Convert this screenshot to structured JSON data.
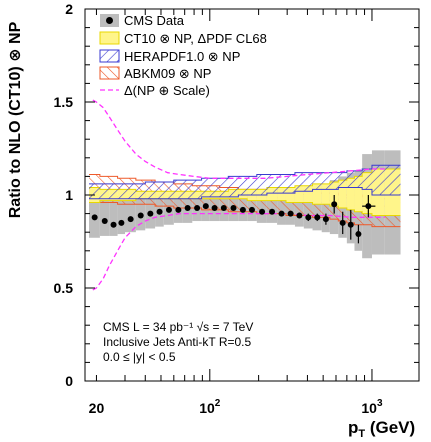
{
  "chart_data": {
    "type": "line",
    "xlabel": "p",
    "xlabel_sub": "T",
    "xlabel_unit": " (GeV)",
    "ylabel": "Ratio to NLO (CT10) ⊗ NP",
    "xlim": [
      17,
      1950
    ],
    "ylim": [
      0,
      2
    ],
    "x_scale": "log",
    "x_tick_labels": [
      {
        "x": 20,
        "text": "20",
        "sup": ""
      },
      {
        "x": 100,
        "text": "10",
        "sup": "2"
      },
      {
        "x": 1000,
        "text": "10",
        "sup": "3"
      }
    ],
    "y_ticks": [
      0,
      0.5,
      1,
      1.5,
      2
    ],
    "y_tick_labels": [
      "0",
      "0.5",
      "1",
      "1.5",
      "2"
    ],
    "legend_position": "top-right",
    "legend": [
      {
        "key": "data",
        "label": "CMS Data"
      },
      {
        "key": "ct10",
        "label": "CT10 ⊗ NP, ΔPDF CL68"
      },
      {
        "key": "hera",
        "label": "HERAPDF1.0 ⊗ NP"
      },
      {
        "key": "abkm",
        "label": "ABKM09 ⊗ NP"
      },
      {
        "key": "np",
        "label": "Δ(NP ⊕ Scale)"
      }
    ],
    "annotations": [
      "CMS   L = 34 pb⁻¹   √s = 7 TeV",
      "Inclusive Jets   Anti-kT R=0.5",
      "0.0 ≤ |y| < 0.5"
    ],
    "bins": [
      18,
      21,
      24,
      27,
      30,
      35,
      40,
      46,
      52,
      60,
      68,
      78,
      89,
      100,
      115,
      130,
      150,
      170,
      195,
      225,
      260,
      295,
      335,
      380,
      430,
      490,
      550,
      620,
      700,
      780,
      870,
      1000,
      1200,
      1500
    ],
    "series": [
      {
        "name": "CMS Data",
        "x": [
          19.5,
          22.5,
          25.5,
          28.5,
          32.5,
          37.5,
          43,
          49,
          56,
          64,
          73,
          83.5,
          94.5,
          107,
          122,
          140,
          160,
          182,
          210,
          242,
          277,
          315,
          357,
          405,
          460,
          520,
          585,
          660,
          740,
          825,
          950
        ],
        "y": [
          0.88,
          0.86,
          0.84,
          0.85,
          0.87,
          0.89,
          0.9,
          0.91,
          0.92,
          0.92,
          0.93,
          0.93,
          0.94,
          0.93,
          0.93,
          0.93,
          0.92,
          0.92,
          0.91,
          0.91,
          0.9,
          0.9,
          0.89,
          0.88,
          0.88,
          0.87,
          0.95,
          0.85,
          0.84,
          0.79,
          0.94
        ],
        "err": [
          0.01,
          0.01,
          0.01,
          0.01,
          0.01,
          0.01,
          0.01,
          0.01,
          0.01,
          0.01,
          0.01,
          0.01,
          0.01,
          0.01,
          0.01,
          0.01,
          0.01,
          0.01,
          0.01,
          0.01,
          0.01,
          0.01,
          0.015,
          0.02,
          0.02,
          0.03,
          0.05,
          0.06,
          0.08,
          0.05,
          0.06
        ]
      },
      {
        "name": "Systematic uncertainty",
        "lo": [
          0.77,
          0.78,
          0.78,
          0.79,
          0.8,
          0.81,
          0.82,
          0.83,
          0.84,
          0.85,
          0.85,
          0.86,
          0.86,
          0.86,
          0.86,
          0.86,
          0.86,
          0.86,
          0.85,
          0.85,
          0.84,
          0.84,
          0.83,
          0.82,
          0.81,
          0.8,
          0.79,
          0.77,
          0.74,
          0.7,
          0.66,
          0.68,
          0.68
        ],
        "hi": [
          1.0,
          0.99,
          0.98,
          0.99,
          1.0,
          1.01,
          1.01,
          1.02,
          1.02,
          1.02,
          1.02,
          1.02,
          1.02,
          1.02,
          1.02,
          1.02,
          1.02,
          1.02,
          1.02,
          1.02,
          1.02,
          1.02,
          1.03,
          1.04,
          1.05,
          1.06,
          1.08,
          1.1,
          1.12,
          1.13,
          1.22,
          1.24,
          1.24
        ]
      },
      {
        "name": "CT10 ⊗ NP, ΔPDF CL68",
        "lo": [
          0.96,
          0.97,
          0.97,
          0.97,
          0.97,
          0.98,
          0.98,
          0.98,
          0.98,
          0.98,
          0.98,
          0.98,
          0.98,
          0.98,
          0.98,
          0.98,
          0.98,
          0.97,
          0.97,
          0.97,
          0.97,
          0.96,
          0.96,
          0.96,
          0.95,
          0.95,
          0.94,
          0.93,
          0.92,
          0.91,
          0.9,
          0.89,
          0.89
        ],
        "hi": [
          1.04,
          1.03,
          1.03,
          1.03,
          1.03,
          1.02,
          1.02,
          1.02,
          1.02,
          1.02,
          1.02,
          1.02,
          1.02,
          1.02,
          1.02,
          1.03,
          1.03,
          1.03,
          1.03,
          1.04,
          1.04,
          1.04,
          1.05,
          1.05,
          1.06,
          1.06,
          1.07,
          1.08,
          1.09,
          1.1,
          1.12,
          1.14,
          1.14
        ]
      },
      {
        "name": "HERAPDF1.0 ⊗ NP",
        "lo": [
          0.98,
          0.98,
          0.98,
          0.98,
          0.98,
          0.98,
          0.98,
          0.98,
          0.98,
          0.98,
          0.98,
          0.98,
          0.99,
          0.99,
          0.99,
          0.99,
          1.0,
          1.0,
          1.0,
          1.01,
          1.01,
          1.01,
          1.02,
          1.02,
          1.03,
          1.03,
          1.03,
          1.04,
          1.04,
          1.04,
          1.03,
          1.0,
          1.0
        ],
        "hi": [
          1.06,
          1.06,
          1.06,
          1.06,
          1.06,
          1.06,
          1.07,
          1.07,
          1.07,
          1.08,
          1.08,
          1.08,
          1.09,
          1.09,
          1.09,
          1.1,
          1.1,
          1.1,
          1.11,
          1.11,
          1.11,
          1.11,
          1.12,
          1.12,
          1.12,
          1.12,
          1.12,
          1.12,
          1.13,
          1.13,
          1.14,
          1.16,
          1.16
        ]
      },
      {
        "name": "ABKM09 ⊗ NP",
        "lo": [
          0.96,
          0.96,
          0.96,
          0.95,
          0.95,
          0.95,
          0.95,
          0.94,
          0.94,
          0.93,
          0.93,
          0.93,
          0.92,
          0.92,
          0.92,
          0.91,
          0.91,
          0.91,
          0.9,
          0.9,
          0.9,
          0.89,
          0.89,
          0.89,
          0.88,
          0.88,
          0.87,
          0.86,
          0.85,
          0.84,
          0.84,
          0.83,
          0.83
        ],
        "hi": [
          1.11,
          1.1,
          1.1,
          1.09,
          1.09,
          1.08,
          1.08,
          1.07,
          1.07,
          1.06,
          1.06,
          1.05,
          1.05,
          1.05,
          1.04,
          1.04,
          1.03,
          1.03,
          1.03,
          1.03,
          1.02,
          1.02,
          1.02,
          1.02,
          1.01,
          1.01,
          1.01,
          1.0,
          1.0,
          1.0,
          0.99,
          0.98,
          0.98
        ]
      },
      {
        "name": "Δ(NP ⊕ Scale)",
        "x": [
          19,
          20,
          22,
          24,
          27,
          30,
          35,
          40,
          46,
          55,
          65,
          80,
          100,
          130,
          170,
          220,
          300,
          400,
          550,
          750,
          1000,
          1200
        ],
        "upper": [
          1.51,
          1.5,
          1.47,
          1.42,
          1.35,
          1.29,
          1.22,
          1.18,
          1.15,
          1.12,
          1.11,
          1.1,
          1.09,
          1.09,
          1.09,
          1.09,
          1.1,
          1.11,
          1.12,
          1.13,
          1.14,
          1.14
        ],
        "lower": [
          0.49,
          0.5,
          0.55,
          0.62,
          0.7,
          0.77,
          0.83,
          0.86,
          0.88,
          0.89,
          0.9,
          0.9,
          0.9,
          0.9,
          0.9,
          0.9,
          0.9,
          0.89,
          0.89,
          0.88,
          0.88,
          0.88
        ]
      }
    ]
  },
  "colors": {
    "data": "#000000",
    "sys": "#bdbdbd",
    "ct10_fill": "#fff58a",
    "ct10_edge": "#e8d800",
    "hera": "#3a3ad0",
    "abkm": "#ee5a2a",
    "np": "#ff33ff"
  }
}
